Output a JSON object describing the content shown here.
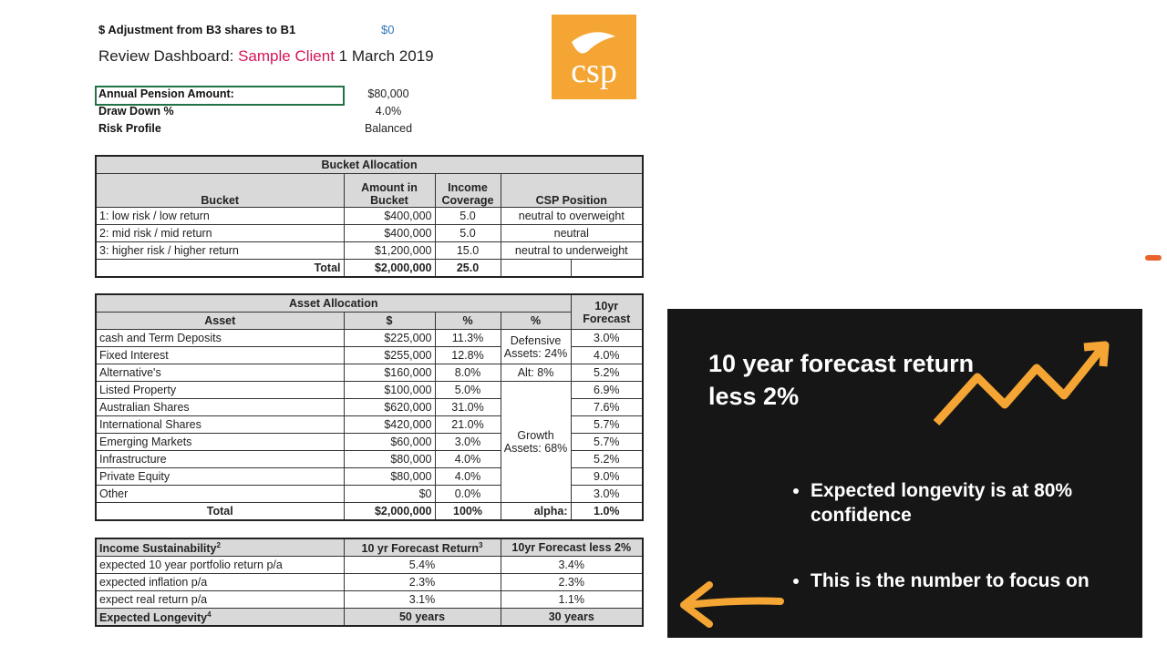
{
  "header": {
    "adjustment_label": "$ Adjustment from B3 shares to B1",
    "adjustment_value": "$0",
    "title_prefix": "Review Dashboard:",
    "client": "Sample Client",
    "date": "1 March 2019",
    "logo": "csp"
  },
  "inputs": [
    [
      "Annual Pension Amount:",
      "$80,000"
    ],
    [
      "Draw Down %",
      "4.0%"
    ],
    [
      "Risk Profile",
      "Balanced"
    ]
  ],
  "bucket_table": {
    "title": "Bucket Allocation",
    "headers": [
      "Bucket",
      "Amount in Bucket",
      "Income Coverage",
      "CSP Position"
    ],
    "rows": [
      [
        "1: low risk / low return",
        "$400,000",
        "5.0",
        "neutral to overweight"
      ],
      [
        "2: mid risk / mid return",
        "$400,000",
        "5.0",
        "neutral"
      ],
      [
        "3: higher risk / higher return",
        "$1,200,000",
        "15.0",
        "neutral to underweight"
      ]
    ],
    "total": [
      "Total",
      "$2,000,000",
      "25.0"
    ]
  },
  "asset_table": {
    "title": "Asset Allocation",
    "forecast_header": "10yr Forecast",
    "headers": [
      "Asset",
      "$",
      "%",
      "%"
    ],
    "rows": [
      [
        "cash and Term Deposits",
        "$225,000",
        "11.3%",
        "3.0%"
      ],
      [
        "Fixed Interest",
        "$255,000",
        "12.8%",
        "4.0%"
      ],
      [
        "Alternative's",
        "$160,000",
        "8.0%",
        "5.2%"
      ],
      [
        "Listed Property",
        "$100,000",
        "5.0%",
        "6.9%"
      ],
      [
        "Australian Shares",
        "$620,000",
        "31.0%",
        "7.6%"
      ],
      [
        "International Shares",
        "$420,000",
        "21.0%",
        "5.7%"
      ],
      [
        "Emerging Markets",
        "$60,000",
        "3.0%",
        "5.7%"
      ],
      [
        "Infrastructure",
        "$80,000",
        "4.0%",
        "5.2%"
      ],
      [
        "Private Equity",
        "$80,000",
        "4.0%",
        "9.0%"
      ],
      [
        "Other",
        "$0",
        "0.0%",
        "3.0%"
      ]
    ],
    "groups": [
      "Defensive Assets: 24%",
      "Alt: 8%",
      "Growth Assets: 68%"
    ],
    "total": [
      "Total",
      "$2,000,000",
      "100%"
    ],
    "alpha_label": "alpha:",
    "alpha_value": "1.0%"
  },
  "sustainability_table": {
    "headers": [
      {
        "text": "Income Sustainability",
        "sup": "2"
      },
      {
        "text": "10 yr Forecast Return",
        "sup": "3"
      },
      "10yr Forecast less 2%"
    ],
    "rows": [
      [
        "expected 10 year portfolio return p/a",
        "5.4%",
        "3.4%"
      ],
      [
        "expected inflation p/a",
        "2.3%",
        "2.3%"
      ],
      [
        "expect real return p/a",
        "3.1%",
        "1.1%"
      ]
    ],
    "longevity": [
      {
        "text": "Expected Longevity",
        "sup": "4"
      },
      "50 years",
      "30 years"
    ]
  },
  "panel": {
    "heading": "10 year forecast return less 2%",
    "bullets": [
      "Expected longevity is at 80% confidence",
      "This is the number to focus on"
    ]
  }
}
